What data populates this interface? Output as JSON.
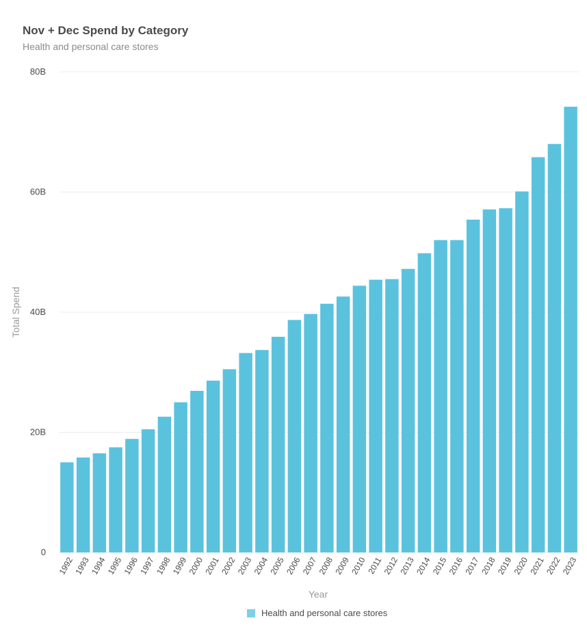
{
  "colors": {
    "bar": "#5BC2DE",
    "legend_swatch": "#7DD0E6",
    "grid": "#ececec"
  },
  "chart_data": {
    "type": "bar",
    "title": "Nov + Dec Spend by Category",
    "subtitle": "Health and personal care stores",
    "xlabel": "Year",
    "ylabel": "Total Spend",
    "ylim": [
      0,
      80000000000
    ],
    "yticks": [
      {
        "value": 0,
        "label": "0"
      },
      {
        "value": 20000000000,
        "label": "20B"
      },
      {
        "value": 40000000000,
        "label": "40B"
      },
      {
        "value": 60000000000,
        "label": "60B"
      },
      {
        "value": 80000000000,
        "label": "80B"
      }
    ],
    "grid": true,
    "legend_position": "bottom-center",
    "categories": [
      "1992",
      "1993",
      "1994",
      "1995",
      "1996",
      "1997",
      "1998",
      "1999",
      "2000",
      "2001",
      "2002",
      "2003",
      "2004",
      "2005",
      "2006",
      "2007",
      "2008",
      "2009",
      "2010",
      "2011",
      "2012",
      "2013",
      "2014",
      "2015",
      "2016",
      "2017",
      "2018",
      "2019",
      "2020",
      "2021",
      "2022",
      "2023"
    ],
    "series": [
      {
        "name": "Health and personal care stores",
        "values": [
          15000000000,
          15800000000,
          16500000000,
          17500000000,
          18900000000,
          20500000000,
          22600000000,
          25000000000,
          26900000000,
          28600000000,
          30500000000,
          33200000000,
          33700000000,
          35900000000,
          38700000000,
          39700000000,
          41400000000,
          42600000000,
          44400000000,
          45400000000,
          45500000000,
          47200000000,
          49800000000,
          52000000000,
          52000000000,
          55400000000,
          57100000000,
          57300000000,
          60100000000,
          65800000000,
          68000000000,
          74200000000
        ]
      }
    ]
  }
}
